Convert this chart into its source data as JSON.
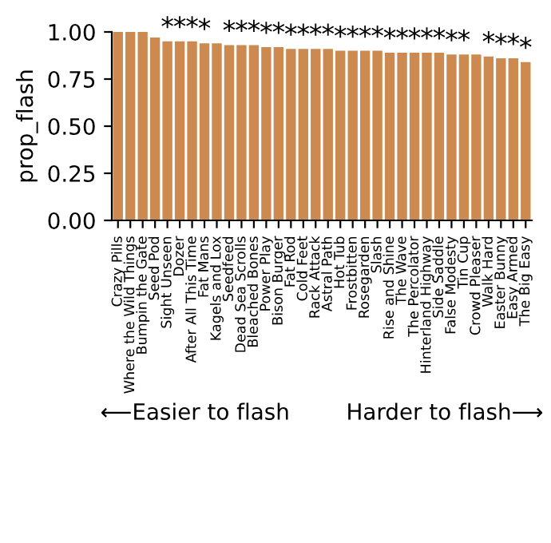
{
  "chart_data": {
    "type": "bar",
    "xlabel": "⟵Easier to flash        Harder to flash⟶",
    "ylabel": "prop_flash",
    "categories": [
      "Crazy Pills",
      "Where the Wild Things",
      "Bumpin the Gate",
      "Seed Pod",
      "Sight Unseen",
      "Dozer",
      "After All This Time",
      "Fat Mans",
      "Kagels and Lox",
      "Seedfeed",
      "Dead Sea Scrolls",
      "Bleached Bones",
      "Power Play",
      "Bison Burger",
      "Fat Rod",
      "Cold Feet",
      "Rack Attack",
      "Astral Path",
      "Hot Tub",
      "Frostbitten",
      "Rosegarden",
      "Slash",
      "Rise and Shine",
      "The Wave",
      "The Percolator",
      "Hinterland Highway",
      "Side Saddle",
      "False Modesty",
      "Tin Cup",
      "Crowd Pleaser",
      "Walk Hard",
      "Easter Bunny",
      "Easy Armed",
      "The Big Easy"
    ],
    "values": [
      1.0,
      1.0,
      1.0,
      0.97,
      0.95,
      0.95,
      0.95,
      0.94,
      0.94,
      0.93,
      0.93,
      0.93,
      0.92,
      0.92,
      0.91,
      0.91,
      0.91,
      0.91,
      0.9,
      0.9,
      0.9,
      0.9,
      0.89,
      0.89,
      0.89,
      0.89,
      0.89,
      0.88,
      0.88,
      0.88,
      0.87,
      0.86,
      0.86,
      0.84
    ],
    "color": "#cd8a50",
    "ylim": [
      0,
      1.0
    ],
    "yticks": [
      {
        "value": 0,
        "label": "0.00"
      },
      {
        "value": 0.25,
        "label": "0.25"
      },
      {
        "value": 0.5,
        "label": "0.50"
      },
      {
        "value": 0.75,
        "label": "0.75"
      },
      {
        "value": 1.0,
        "label": "1.00"
      }
    ],
    "value_labels": [
      null,
      null,
      null,
      null,
      "*",
      "*",
      "*",
      "*",
      null,
      "*",
      "*",
      "*",
      "*",
      "*",
      "*",
      "*",
      "*",
      "*",
      "*",
      "*",
      "*",
      "*",
      "*",
      "*",
      "*",
      "*",
      "*",
      "*",
      "*",
      null,
      "*",
      "*",
      "*",
      "*"
    ],
    "grid": false
  }
}
